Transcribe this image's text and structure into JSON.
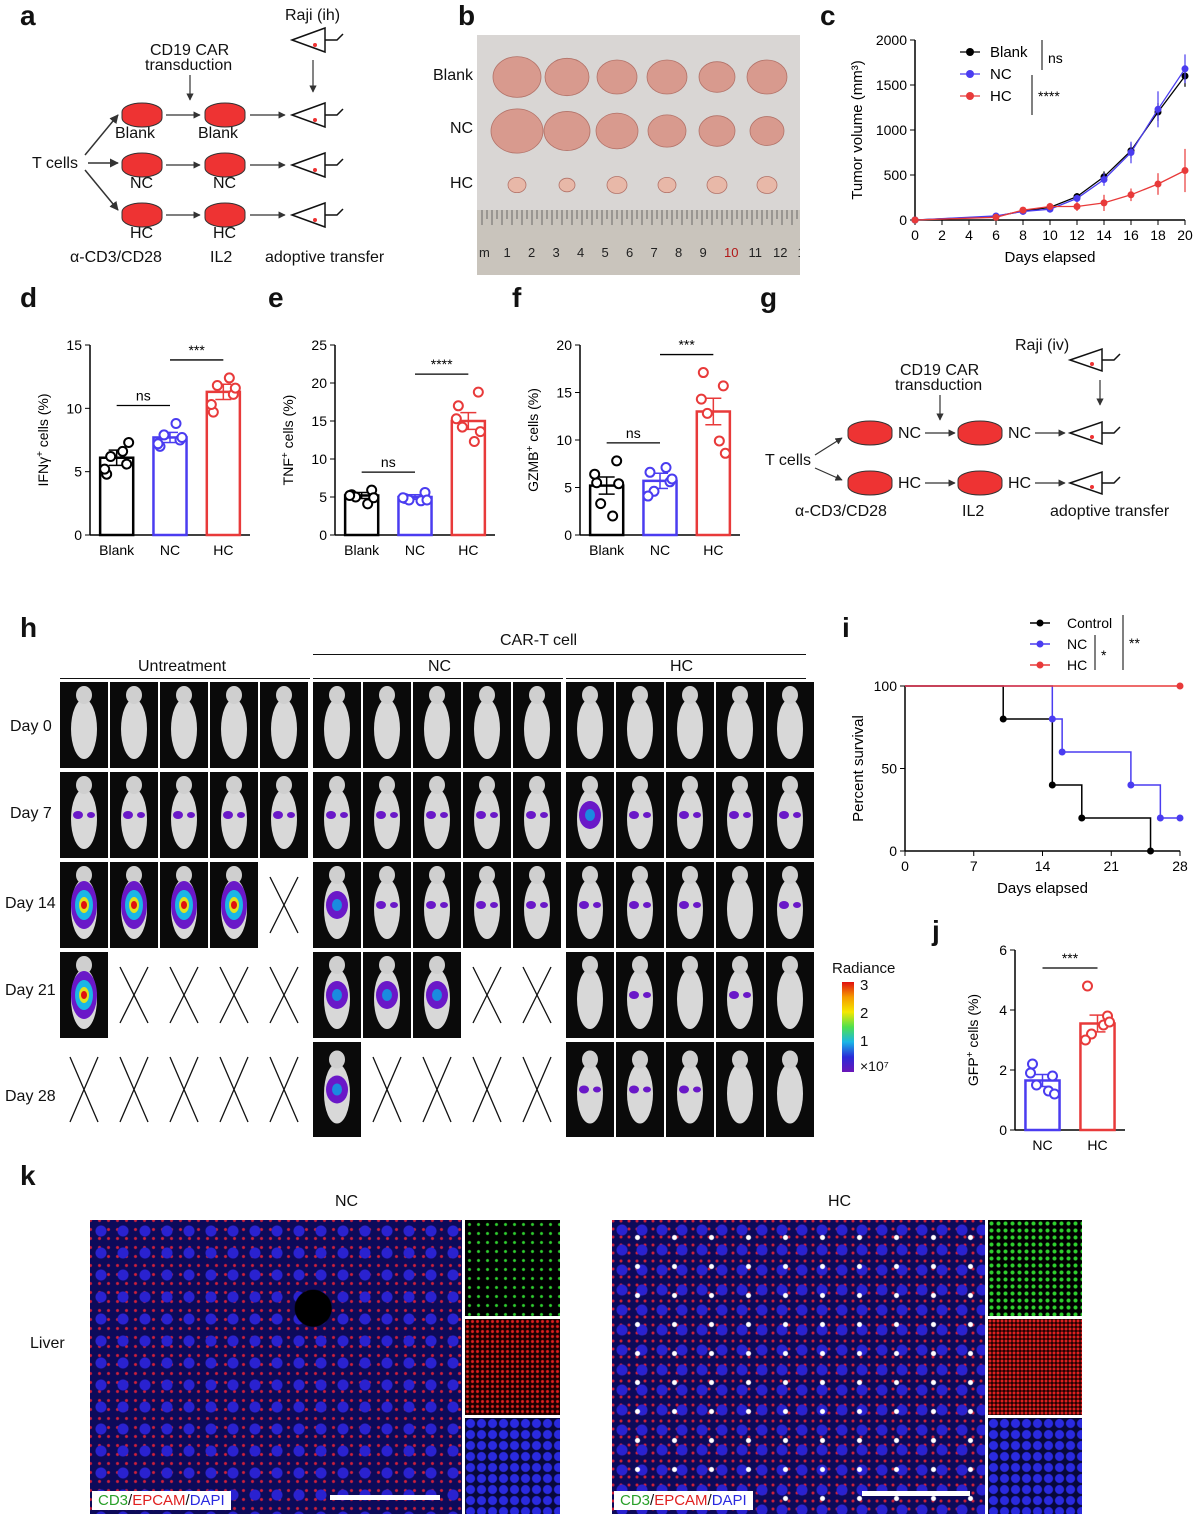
{
  "panel_letters": [
    "a",
    "b",
    "c",
    "d",
    "e",
    "f",
    "g",
    "h",
    "i",
    "j",
    "k"
  ],
  "panel_a": {
    "raji_label": "Raji (ih)",
    "transduction_label_1": "CD19 CAR",
    "transduction_label_2": "transduction",
    "t_cells": "T cells",
    "blank": "Blank",
    "nc": "NC",
    "hc": "HC",
    "stim_label": "α-CD3/CD28",
    "il2_label": "IL2",
    "transfer_label": "adoptive transfer"
  },
  "panel_b": {
    "row_labels": [
      "Blank",
      "NC",
      "HC"
    ],
    "ruler_numbers": [
      "m",
      "1",
      "2",
      "3",
      "4",
      "5",
      "6",
      "7",
      "8",
      "9",
      "10",
      "11",
      "12",
      "1"
    ]
  },
  "colors": {
    "blank": "#000000",
    "nc": "#4a3cf0",
    "hc": "#e83a3a"
  },
  "chart_data": [
    {
      "panel": "c",
      "type": "line",
      "xlabel": "Days elapsed",
      "ylabel": "Tumor volume (mm³)",
      "x": [
        0,
        6,
        8,
        10,
        12,
        14,
        16,
        18,
        20
      ],
      "xticks": [
        "0",
        "2",
        "4",
        "6",
        "8",
        "10",
        "12",
        "14",
        "16",
        "18",
        "20"
      ],
      "yticks": [
        "0",
        "500",
        "1000",
        "1500",
        "2000"
      ],
      "xlim": [
        0,
        20
      ],
      "ylim": [
        0,
        2000
      ],
      "series": [
        {
          "name": "Blank",
          "color": "#000000",
          "values": [
            0,
            40,
            100,
            140,
            260,
            480,
            770,
            1200,
            1600
          ],
          "err": [
            0,
            10,
            20,
            25,
            40,
            60,
            80,
            100,
            120
          ]
        },
        {
          "name": "NC",
          "color": "#4a3cf0",
          "values": [
            0,
            45,
            95,
            120,
            240,
            450,
            750,
            1230,
            1680
          ],
          "err": [
            0,
            10,
            20,
            25,
            40,
            70,
            120,
            200,
            160
          ]
        },
        {
          "name": "HC",
          "color": "#e83a3a",
          "values": [
            0,
            30,
            110,
            150,
            150,
            190,
            280,
            400,
            550
          ],
          "err": [
            0,
            10,
            30,
            40,
            50,
            90,
            70,
            120,
            240
          ]
        }
      ],
      "significance": [
        {
          "label": "ns"
        },
        {
          "label": "****"
        }
      ]
    },
    {
      "panel": "d",
      "type": "bar",
      "ylabel_pre": "IFNγ",
      "ylabel_sup": "+",
      "ylabel_post": " cells (%)",
      "categories": [
        "Blank",
        "NC",
        "HC"
      ],
      "values": [
        6.1,
        7.7,
        11.3
      ],
      "err": [
        0.6,
        0.4,
        0.6
      ],
      "points": [
        [
          4.8,
          5.6,
          6.2,
          6.6,
          5.2,
          7.3
        ],
        [
          7.0,
          7.5,
          7.9,
          8.8,
          7.2,
          7.7
        ],
        [
          9.7,
          11.1,
          11.8,
          12.4,
          10.3,
          11.6
        ]
      ],
      "yticks": [
        "0",
        "5",
        "10",
        "15"
      ],
      "ylim": [
        0,
        15
      ],
      "sig": [
        {
          "from": 0,
          "to": 1,
          "label": "ns"
        },
        {
          "from": 1,
          "to": 2,
          "label": "***"
        }
      ]
    },
    {
      "panel": "e",
      "type": "bar",
      "ylabel_pre": "TNF",
      "ylabel_sup": "+",
      "ylabel_post": " cells (%)",
      "categories": [
        "Blank",
        "NC",
        "HC"
      ],
      "values": [
        5.2,
        5.0,
        15.0
      ],
      "err": [
        0.4,
        0.3,
        1.1
      ],
      "points": [
        [
          5.3,
          5.9,
          5.0,
          4.1,
          5.2,
          4.9
        ],
        [
          4.8,
          5.6,
          4.6,
          4.5,
          4.9,
          4.6
        ],
        [
          17.0,
          18.8,
          14.2,
          12.3,
          15.3,
          13.6
        ]
      ],
      "yticks": [
        "0",
        "5",
        "10",
        "15",
        "20",
        "25"
      ],
      "ylim": [
        0,
        25
      ],
      "sig": [
        {
          "from": 0,
          "to": 1,
          "label": "ns"
        },
        {
          "from": 1,
          "to": 2,
          "label": "****"
        }
      ]
    },
    {
      "panel": "f",
      "type": "bar",
      "ylabel_pre": "GZMB",
      "ylabel_sup": "+",
      "ylabel_post": " cells (%)",
      "categories": [
        "Blank",
        "NC",
        "HC"
      ],
      "values": [
        5.2,
        5.7,
        13.0
      ],
      "err": [
        0.9,
        0.8,
        1.4
      ],
      "points": [
        [
          5.5,
          7.8,
          3.3,
          2.0,
          6.4,
          5.4
        ],
        [
          6.6,
          5.6,
          4.6,
          7.1,
          4.1,
          5.9
        ],
        [
          17.1,
          15.7,
          12.8,
          9.9,
          14.3,
          8.6
        ]
      ],
      "yticks": [
        "0",
        "5",
        "10",
        "15",
        "20"
      ],
      "ylim": [
        0,
        20
      ],
      "sig": [
        {
          "from": 0,
          "to": 1,
          "label": "ns"
        },
        {
          "from": 1,
          "to": 2,
          "label": "***"
        }
      ]
    },
    {
      "panel": "i",
      "type": "line",
      "xlabel": "Days elapsed",
      "ylabel": "Percent survival",
      "xticks": [
        "0",
        "7",
        "14",
        "21",
        "28"
      ],
      "yticks": [
        "0",
        "50",
        "100"
      ],
      "xlim": [
        0,
        28
      ],
      "ylim": [
        0,
        100
      ],
      "series": [
        {
          "name": "Control",
          "color": "#000000",
          "steps": [
            [
              0,
              100
            ],
            [
              10,
              80
            ],
            [
              15,
              40
            ],
            [
              18,
              20
            ],
            [
              25,
              0
            ]
          ]
        },
        {
          "name": "NC",
          "color": "#4a3cf0",
          "steps": [
            [
              0,
              100
            ],
            [
              15,
              80
            ],
            [
              16,
              60
            ],
            [
              23,
              40
            ],
            [
              26,
              20
            ],
            [
              28,
              20
            ]
          ]
        },
        {
          "name": "HC",
          "color": "#e83a3a",
          "steps": [
            [
              0,
              100
            ],
            [
              28,
              100
            ]
          ]
        }
      ],
      "significance": [
        {
          "label": "*"
        },
        {
          "label": "**"
        }
      ]
    },
    {
      "panel": "j",
      "type": "bar",
      "ylabel_pre": "GFP",
      "ylabel_sup": "+",
      "ylabel_post": " cells (%)",
      "categories": [
        "NC",
        "HC"
      ],
      "values": [
        1.65,
        3.55
      ],
      "err": [
        0.2,
        0.28
      ],
      "points": [
        [
          2.2,
          1.8,
          1.5,
          1.3,
          1.9,
          1.2
        ],
        [
          4.8,
          3.8,
          3.2,
          3.5,
          3.0,
          3.6
        ]
      ],
      "yticks": [
        "0",
        "2",
        "4",
        "6"
      ],
      "ylim": [
        0,
        6
      ],
      "sig": [
        {
          "from": 0,
          "to": 1,
          "label": "***"
        }
      ]
    }
  ],
  "panel_g": {
    "raji_label": "Raji (iv)",
    "transduction_label_1": "CD19 CAR",
    "transduction_label_2": "transduction",
    "t_cells": "T cells",
    "nc": "NC",
    "hc": "HC",
    "stim_label": "α-CD3/CD28",
    "il2_label": "IL2",
    "transfer_label": "adoptive transfer"
  },
  "panel_h": {
    "car_t_label": "CAR-T cell",
    "group_labels": [
      "Untreatment",
      "NC",
      "HC"
    ],
    "day_labels": [
      "Day 0",
      "Day 7",
      "Day 14",
      "Day 21",
      "Day 28"
    ],
    "radiance_label": "Radiance",
    "radiance_ticks": [
      "3",
      "2",
      "1"
    ],
    "radiance_unit": "×10⁷"
  },
  "panel_k": {
    "nc_title": "NC",
    "hc_title": "HC",
    "row_label": "Liver",
    "legend_cd3": "CD3",
    "legend_sep1": "/",
    "legend_epcam": "EPCAM",
    "legend_sep2": "/",
    "legend_dapi": "DAPI"
  }
}
